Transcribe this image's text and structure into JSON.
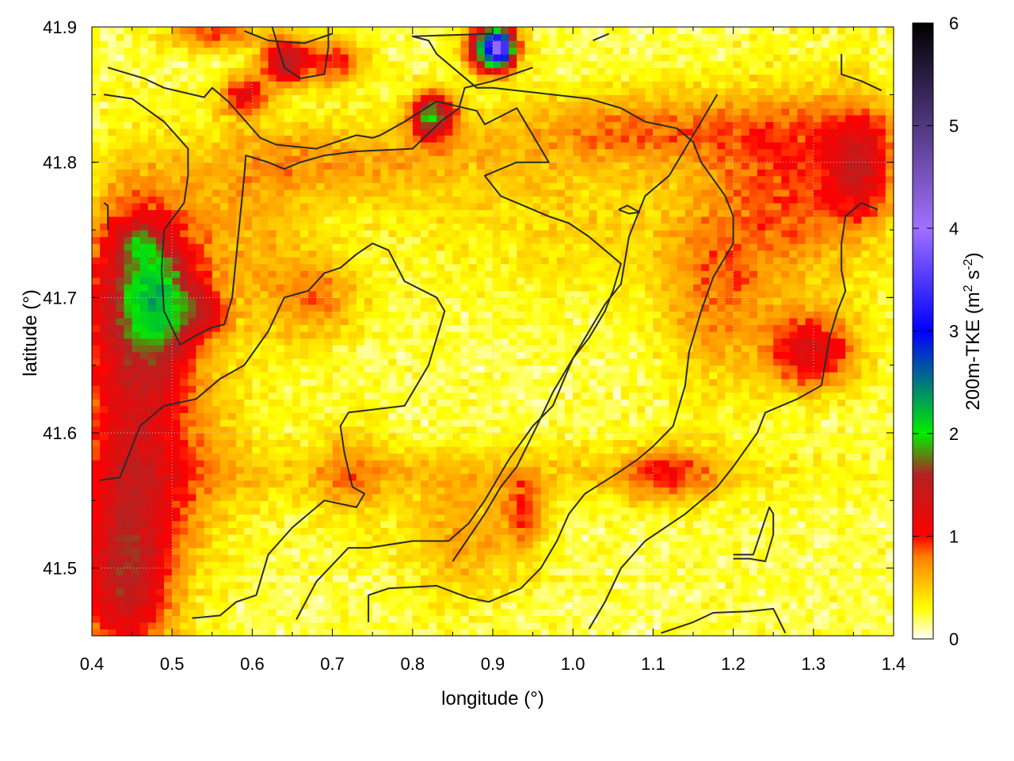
{
  "chart_data": {
    "type": "heatmap",
    "title": "",
    "xlabel": "longitude (°)",
    "ylabel": "latitude (°)",
    "colorbar_label": "200m-TKE (m² s⁻²)",
    "colorbar_label_parts": {
      "base": "200m-TKE (m",
      "sup1": "2",
      "mid": " s",
      "sup2": "-2",
      "end": ")"
    },
    "xlim": [
      0.4,
      1.4
    ],
    "ylim": [
      41.45,
      41.9
    ],
    "clim": [
      0,
      6
    ],
    "x_ticks": [
      "0.4",
      "0.5",
      "0.6",
      "0.7",
      "0.8",
      "0.9",
      "1.0",
      "1.1",
      "1.2",
      "1.3",
      "1.4"
    ],
    "y_ticks": [
      "41.5",
      "41.6",
      "41.7",
      "41.8",
      "41.9"
    ],
    "y_tick_values": [
      41.5,
      41.6,
      41.7,
      41.8,
      41.9
    ],
    "cbar_ticks": [
      "0",
      "1",
      "2",
      "3",
      "4",
      "5",
      "6"
    ],
    "grid": true,
    "colormap": [
      {
        "v": 0.0,
        "c": "#ffffff"
      },
      {
        "v": 0.3,
        "c": "#ffff00"
      },
      {
        "v": 0.8,
        "c": "#ff7f00"
      },
      {
        "v": 1.0,
        "c": "#ff0000"
      },
      {
        "v": 1.6,
        "c": "#b22222"
      },
      {
        "v": 2.0,
        "c": "#00ee00"
      },
      {
        "v": 3.0,
        "c": "#0000ff"
      },
      {
        "v": 4.0,
        "c": "#a070ff"
      },
      {
        "v": 5.0,
        "c": "#503880"
      },
      {
        "v": 6.0,
        "c": "#000000"
      }
    ],
    "features": [
      {
        "x": 0.46,
        "y": 41.7,
        "sx": 0.05,
        "sy": 0.055,
        "a": 1.5
      },
      {
        "x": 0.49,
        "y": 41.7,
        "sx": 0.025,
        "sy": 0.025,
        "a": 0.7
      },
      {
        "x": 0.46,
        "y": 41.74,
        "sx": 0.015,
        "sy": 0.01,
        "a": 0.6
      },
      {
        "x": 0.54,
        "y": 41.69,
        "sx": 0.02,
        "sy": 0.012,
        "a": 0.6
      },
      {
        "x": 0.45,
        "y": 41.56,
        "sx": 0.05,
        "sy": 0.06,
        "a": 1.0
      },
      {
        "x": 0.44,
        "y": 41.48,
        "sx": 0.04,
        "sy": 0.04,
        "a": 0.9
      },
      {
        "x": 0.9,
        "y": 41.885,
        "sx": 0.02,
        "sy": 0.012,
        "a": 2.6
      },
      {
        "x": 0.91,
        "y": 41.885,
        "sx": 0.01,
        "sy": 0.008,
        "a": 1.6
      },
      {
        "x": 0.825,
        "y": 41.835,
        "sx": 0.018,
        "sy": 0.012,
        "a": 1.6
      },
      {
        "x": 0.64,
        "y": 41.875,
        "sx": 0.02,
        "sy": 0.012,
        "a": 1.2
      },
      {
        "x": 0.7,
        "y": 41.875,
        "sx": 0.03,
        "sy": 0.012,
        "a": 0.8
      },
      {
        "x": 0.59,
        "y": 41.85,
        "sx": 0.02,
        "sy": 0.01,
        "a": 0.9
      },
      {
        "x": 0.55,
        "y": 41.895,
        "sx": 0.04,
        "sy": 0.008,
        "a": 0.7
      },
      {
        "x": 1.3,
        "y": 41.66,
        "sx": 0.04,
        "sy": 0.02,
        "a": 1.0
      },
      {
        "x": 1.36,
        "y": 41.8,
        "sx": 0.03,
        "sy": 0.03,
        "a": 0.9
      },
      {
        "x": 1.28,
        "y": 41.78,
        "sx": 0.07,
        "sy": 0.05,
        "a": 0.6
      },
      {
        "x": 1.1,
        "y": 41.825,
        "sx": 0.15,
        "sy": 0.02,
        "a": 0.55
      },
      {
        "x": 1.18,
        "y": 41.7,
        "sx": 0.05,
        "sy": 0.05,
        "a": 0.5
      },
      {
        "x": 1.12,
        "y": 41.57,
        "sx": 0.04,
        "sy": 0.015,
        "a": 0.6
      },
      {
        "x": 0.9,
        "y": 41.57,
        "sx": 0.3,
        "sy": 0.015,
        "a": 0.3
      },
      {
        "x": 0.86,
        "y": 41.52,
        "sx": 0.05,
        "sy": 0.03,
        "a": 0.45
      },
      {
        "x": 0.94,
        "y": 41.54,
        "sx": 0.02,
        "sy": 0.02,
        "a": 0.6
      },
      {
        "x": 0.6,
        "y": 41.75,
        "sx": 0.06,
        "sy": 0.06,
        "a": 0.35
      },
      {
        "x": 0.72,
        "y": 41.8,
        "sx": 0.12,
        "sy": 0.02,
        "a": 0.4
      },
      {
        "x": 0.68,
        "y": 41.7,
        "sx": 0.04,
        "sy": 0.02,
        "a": 0.5
      },
      {
        "x": 1.0,
        "y": 41.76,
        "sx": 0.15,
        "sy": 0.04,
        "a": 0.25
      },
      {
        "x": 0.72,
        "y": 41.57,
        "sx": 0.03,
        "sy": 0.03,
        "a": 0.4
      },
      {
        "x": 0.55,
        "y": 41.58,
        "sx": 0.05,
        "sy": 0.05,
        "a": 0.25
      }
    ],
    "contours": [
      [
        [
          0.42,
          41.87
        ],
        [
          0.465,
          41.862
        ],
        [
          0.49,
          41.855
        ],
        [
          0.54,
          41.848
        ],
        [
          0.55,
          41.855
        ],
        [
          0.57,
          41.845
        ],
        [
          0.61,
          41.818
        ],
        [
          0.63,
          41.813
        ],
        [
          0.68,
          41.81
        ],
        [
          0.73,
          41.82
        ],
        [
          0.75,
          41.818
        ],
        [
          0.76,
          41.82
        ],
        [
          0.79,
          41.83
        ],
        [
          0.83,
          41.845
        ],
        [
          0.88,
          41.838
        ],
        [
          0.89,
          41.828
        ],
        [
          0.93,
          41.84
        ],
        [
          0.97,
          41.8
        ],
        [
          0.93,
          41.8
        ],
        [
          0.89,
          41.79
        ],
        [
          0.91,
          41.775
        ],
        [
          0.97,
          41.76
        ],
        [
          0.995,
          41.755
        ],
        [
          1.02,
          41.745
        ],
        [
          1.05,
          41.73
        ],
        [
          1.06,
          41.725
        ],
        [
          1.05,
          41.705
        ],
        [
          1.04,
          41.69
        ],
        [
          1.03,
          41.68
        ],
        [
          1.02,
          41.67
        ],
        [
          1.0,
          41.655
        ],
        [
          0.975,
          41.63
        ],
        [
          0.955,
          41.605
        ],
        [
          0.93,
          41.575
        ],
        [
          0.91,
          41.56
        ],
        [
          0.89,
          41.54
        ],
        [
          0.85,
          41.505
        ]
      ],
      [
        [
          0.415,
          41.85
        ],
        [
          0.45,
          41.847
        ],
        [
          0.49,
          41.83
        ],
        [
          0.52,
          41.81
        ],
        [
          0.52,
          41.79
        ],
        [
          0.515,
          41.77
        ],
        [
          0.49,
          41.75
        ],
        [
          0.487,
          41.72
        ],
        [
          0.49,
          41.69
        ],
        [
          0.51,
          41.665
        ],
        [
          0.53,
          41.672
        ],
        [
          0.55,
          41.678
        ],
        [
          0.565,
          41.68
        ],
        [
          0.575,
          41.7
        ],
        [
          0.58,
          41.73
        ],
        [
          0.585,
          41.76
        ],
        [
          0.59,
          41.79
        ],
        [
          0.592,
          41.805
        ],
        [
          0.62,
          41.8
        ],
        [
          0.64,
          41.795
        ],
        [
          0.66,
          41.8
        ],
        [
          0.69,
          41.805
        ],
        [
          0.73,
          41.808
        ],
        [
          0.8,
          41.81
        ],
        [
          0.835,
          41.83
        ],
        [
          0.858,
          41.84
        ],
        [
          0.865,
          41.855
        ],
        [
          0.9,
          41.86
        ],
        [
          0.95,
          41.87
        ]
      ],
      [
        [
          0.41,
          41.565
        ],
        [
          0.435,
          41.567
        ],
        [
          0.46,
          41.605
        ],
        [
          0.49,
          41.62
        ],
        [
          0.53,
          41.625
        ],
        [
          0.56,
          41.64
        ],
        [
          0.59,
          41.65
        ],
        [
          0.62,
          41.675
        ],
        [
          0.64,
          41.7
        ],
        [
          0.67,
          41.705
        ],
        [
          0.69,
          41.718
        ],
        [
          0.71,
          41.722
        ],
        [
          0.73,
          41.732
        ],
        [
          0.75,
          41.74
        ],
        [
          0.77,
          41.735
        ],
        [
          0.79,
          41.712
        ],
        [
          0.83,
          41.7
        ],
        [
          0.84,
          41.69
        ],
        [
          0.83,
          41.67
        ],
        [
          0.82,
          41.65
        ],
        [
          0.79,
          41.62
        ],
        [
          0.72,
          41.615
        ],
        [
          0.71,
          41.605
        ],
        [
          0.715,
          41.585
        ],
        [
          0.725,
          41.56
        ],
        [
          0.74,
          41.555
        ],
        [
          0.73,
          41.545
        ],
        [
          0.69,
          41.55
        ],
        [
          0.67,
          41.54
        ],
        [
          0.65,
          41.53
        ],
        [
          0.62,
          41.51
        ],
        [
          0.605,
          41.48
        ],
        [
          0.58,
          41.475
        ],
        [
          0.56,
          41.465
        ],
        [
          0.525,
          41.463
        ]
      ],
      [
        [
          0.655,
          41.462
        ],
        [
          0.68,
          41.49
        ],
        [
          0.72,
          41.515
        ],
        [
          0.745,
          41.515
        ],
        [
          0.8,
          41.52
        ],
        [
          0.845,
          41.52
        ],
        [
          0.87,
          41.533
        ],
        [
          0.89,
          41.55
        ],
        [
          0.92,
          41.58
        ],
        [
          0.95,
          41.605
        ],
        [
          0.975,
          41.62
        ],
        [
          1.0,
          41.655
        ],
        [
          1.015,
          41.67
        ],
        [
          1.04,
          41.695
        ],
        [
          1.06,
          41.71
        ],
        [
          1.07,
          41.745
        ],
        [
          1.09,
          41.775
        ],
        [
          1.12,
          41.79
        ],
        [
          1.14,
          41.81
        ],
        [
          1.16,
          41.83
        ],
        [
          1.18,
          41.85
        ]
      ],
      [
        [
          0.745,
          41.46
        ],
        [
          0.745,
          41.48
        ],
        [
          0.77,
          41.485
        ],
        [
          0.83,
          41.487
        ],
        [
          0.87,
          41.478
        ],
        [
          0.895,
          41.475
        ],
        [
          0.935,
          41.485
        ],
        [
          0.96,
          41.5
        ],
        [
          0.98,
          41.52
        ],
        [
          0.995,
          41.54
        ],
        [
          1.015,
          41.555
        ],
        [
          1.055,
          41.57
        ],
        [
          1.08,
          41.58
        ],
        [
          1.1,
          41.59
        ],
        [
          1.125,
          41.605
        ],
        [
          1.14,
          41.635
        ],
        [
          1.145,
          41.66
        ],
        [
          1.16,
          41.69
        ],
        [
          1.175,
          41.715
        ],
        [
          1.2,
          41.74
        ],
        [
          1.2,
          41.76
        ],
        [
          1.19,
          41.775
        ],
        [
          1.16,
          41.8
        ],
        [
          1.15,
          41.815
        ],
        [
          1.13,
          41.825
        ],
        [
          1.09,
          41.83
        ],
        [
          1.06,
          41.84
        ],
        [
          1.02,
          41.847
        ],
        [
          0.9,
          41.855
        ],
        [
          0.88,
          41.855
        ],
        [
          0.85,
          41.87
        ],
        [
          0.83,
          41.88
        ],
        [
          0.82,
          41.89
        ],
        [
          0.8,
          41.893
        ],
        [
          0.9,
          41.895
        ]
      ],
      [
        [
          1.02,
          41.455
        ],
        [
          1.04,
          41.475
        ],
        [
          1.06,
          41.5
        ],
        [
          1.09,
          41.52
        ],
        [
          1.14,
          41.54
        ],
        [
          1.18,
          41.56
        ],
        [
          1.2,
          41.575
        ],
        [
          1.23,
          41.6
        ],
        [
          1.24,
          41.615
        ],
        [
          1.28,
          41.625
        ],
        [
          1.31,
          41.635
        ],
        [
          1.32,
          41.67
        ],
        [
          1.33,
          41.69
        ],
        [
          1.34,
          41.705
        ],
        [
          1.335,
          41.72
        ],
        [
          1.335,
          41.74
        ],
        [
          1.34,
          41.76
        ],
        [
          1.36,
          41.77
        ],
        [
          1.38,
          41.765
        ]
      ],
      [
        [
          1.335,
          41.88
        ],
        [
          1.335,
          41.865
        ],
        [
          1.36,
          41.86
        ],
        [
          1.385,
          41.853
        ]
      ],
      [
        [
          0.415,
          41.77
        ],
        [
          0.42,
          41.768
        ],
        [
          0.42,
          41.75
        ]
      ],
      [
        [
          1.2,
          41.507
        ],
        [
          1.22,
          41.507
        ],
        [
          1.24,
          41.505
        ],
        [
          1.25,
          41.525
        ],
        [
          1.25,
          41.54
        ],
        [
          1.245,
          41.545
        ],
        [
          1.225,
          41.51
        ],
        [
          1.2,
          41.51
        ]
      ],
      [
        [
          1.11,
          41.452
        ],
        [
          1.15,
          41.46
        ],
        [
          1.175,
          41.467
        ],
        [
          1.22,
          41.468
        ],
        [
          1.25,
          41.47
        ],
        [
          1.265,
          41.452
        ]
      ],
      [
        [
          0.625,
          41.9
        ],
        [
          0.64,
          41.87
        ],
        [
          0.66,
          41.862
        ],
        [
          0.69,
          41.865
        ],
        [
          0.695,
          41.885
        ],
        [
          0.695,
          41.9
        ]
      ],
      [
        [
          0.59,
          41.897
        ],
        [
          0.62,
          41.89
        ],
        [
          0.665,
          41.888
        ],
        [
          0.7,
          41.895
        ]
      ],
      [
        [
          1.057,
          41.765
        ],
        [
          1.07,
          41.762
        ],
        [
          1.083,
          41.763
        ],
        [
          1.068,
          41.768
        ],
        [
          1.057,
          41.765
        ]
      ],
      [
        [
          1.025,
          41.89
        ],
        [
          1.045,
          41.895
        ]
      ]
    ]
  }
}
